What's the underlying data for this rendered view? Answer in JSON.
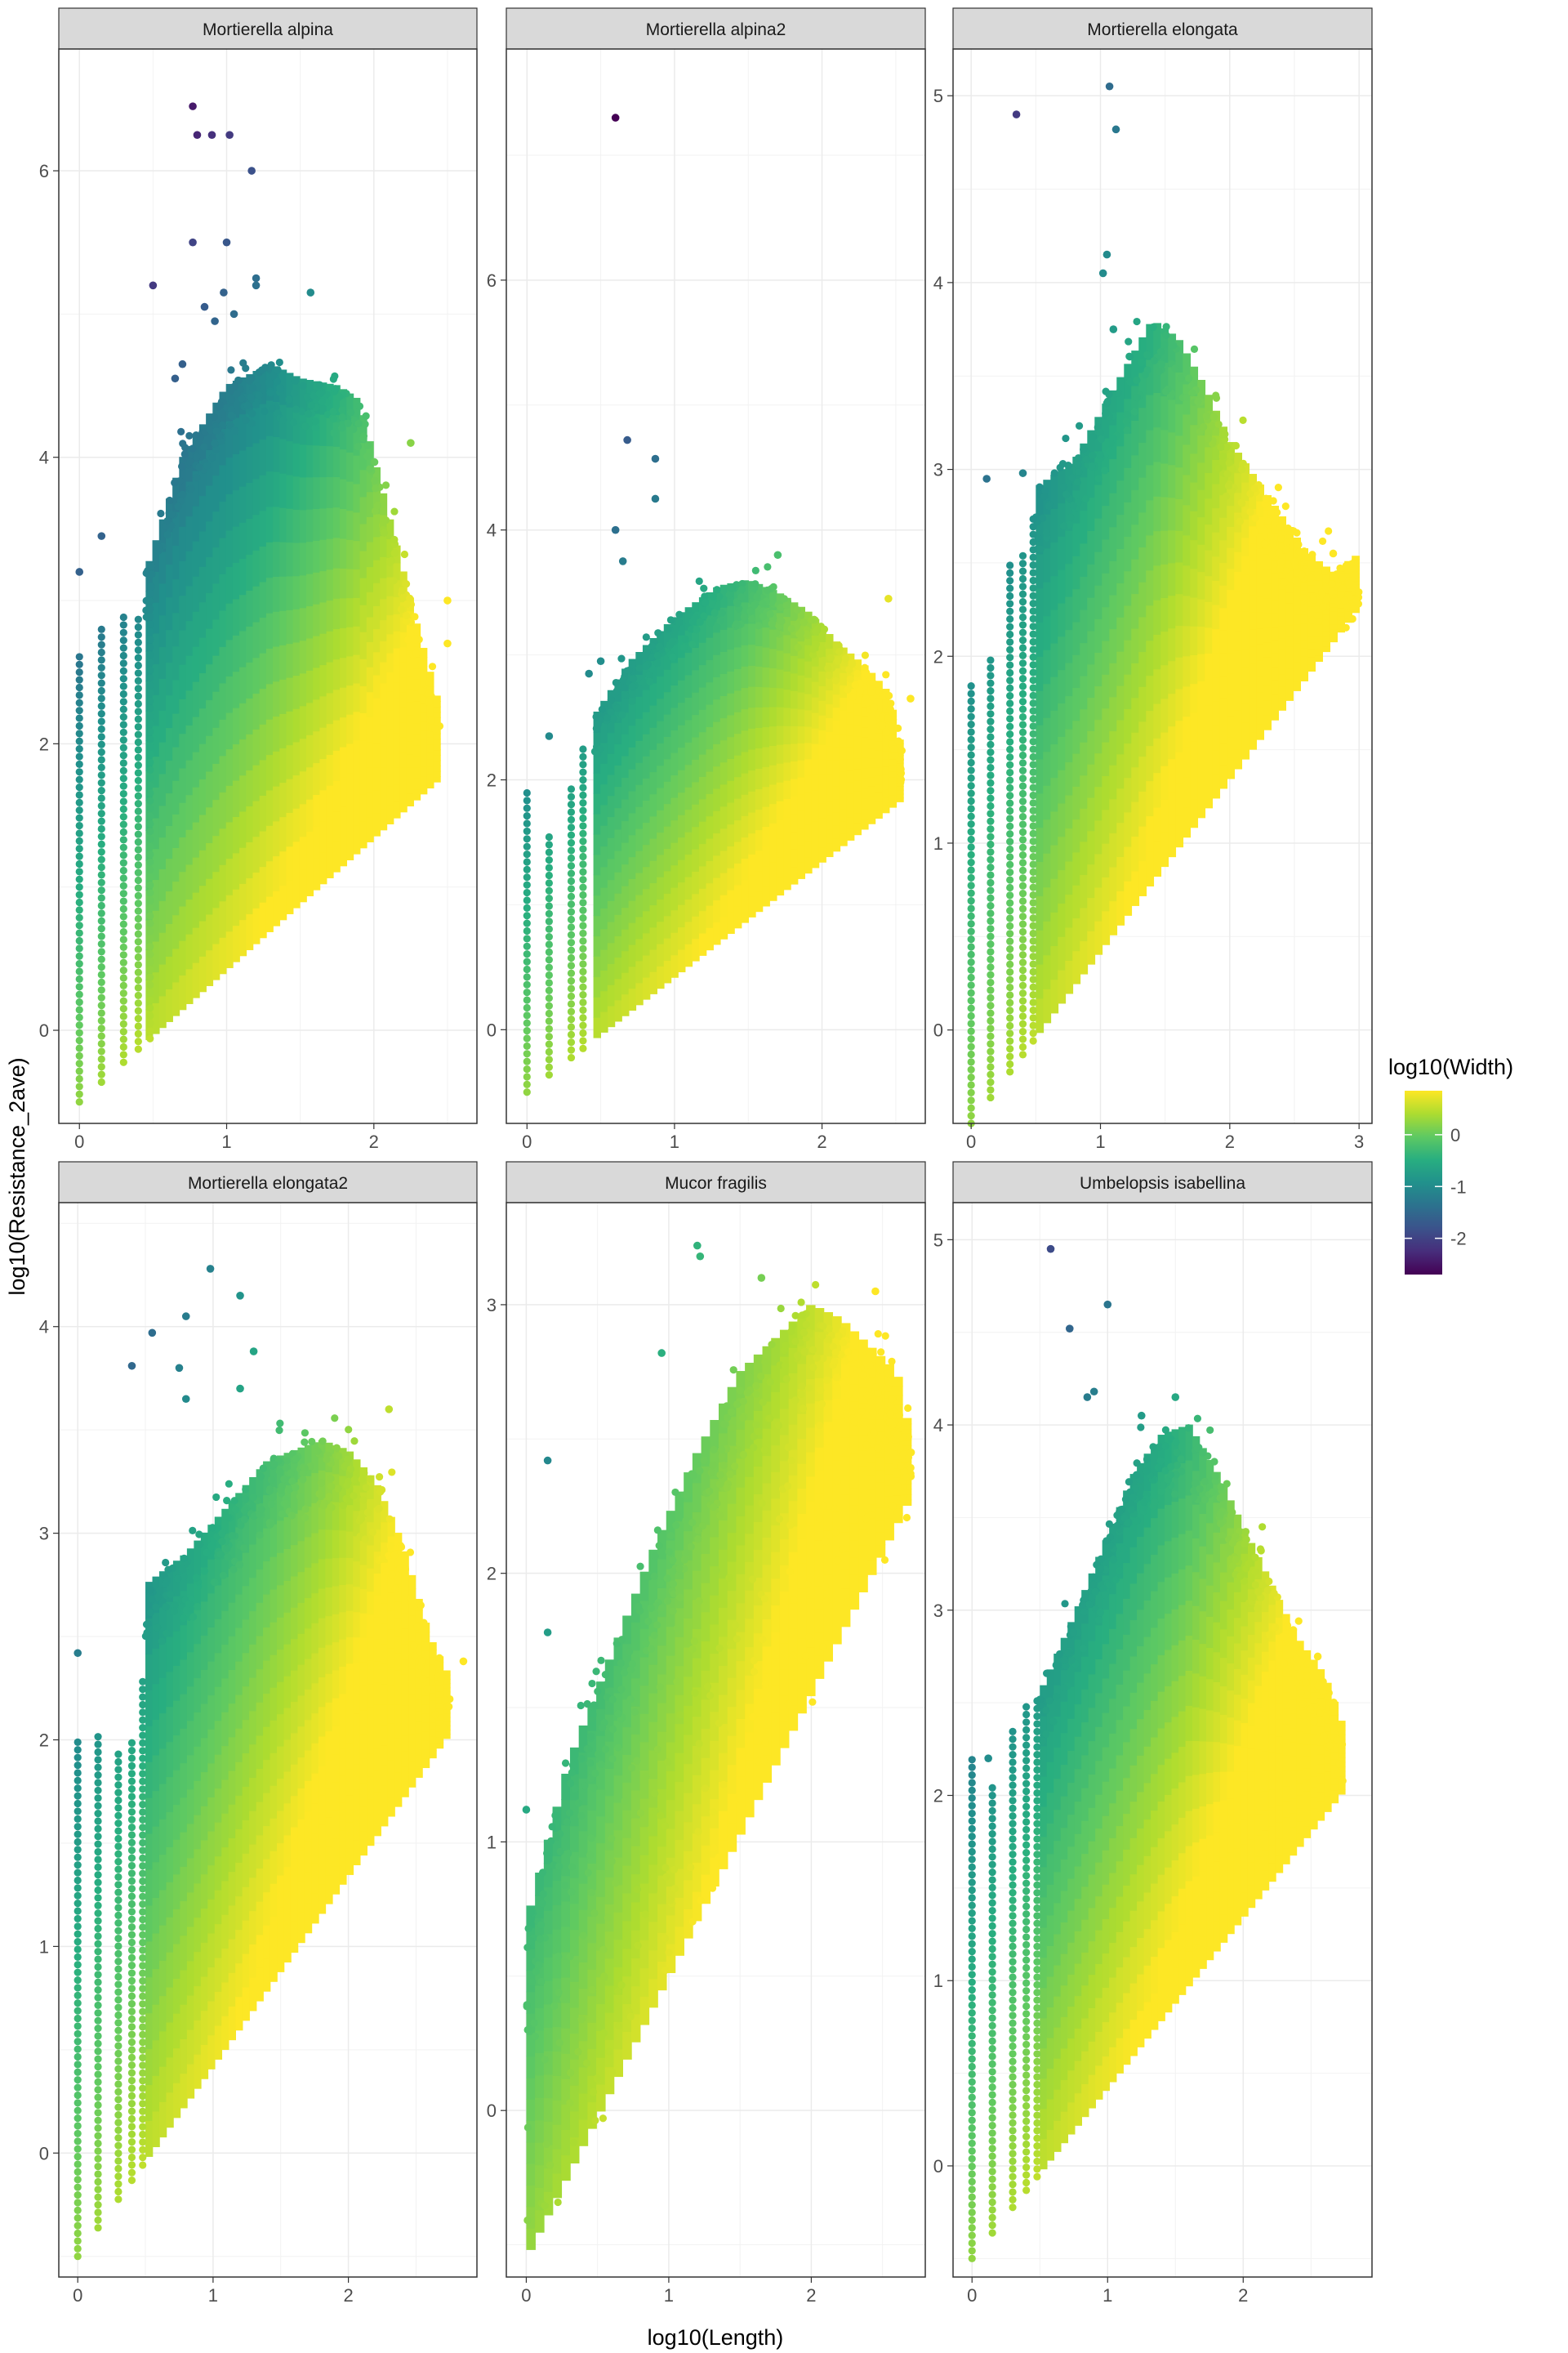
{
  "chart_data": {
    "type": "scatter",
    "xlabel": "log10(Length)",
    "ylabel": "log10(Resistance_2ave)",
    "legend": {
      "title": "log10(Width)",
      "position": "right",
      "colormap": "viridis",
      "breaks": [
        0,
        -1,
        -2
      ],
      "break_labels": [
        "0",
        "-1",
        "-2"
      ],
      "range": [
        -2.7,
        0.85
      ]
    },
    "grid": true,
    "panels": [
      {
        "title": "Mortierella alpina",
        "xlim": [
          -0.14,
          2.7
        ],
        "ylim": [
          -0.65,
          6.85
        ],
        "xticks": [
          0,
          1,
          2
        ],
        "yticks": [
          0,
          2,
          4,
          6
        ],
        "columns": [
          0,
          0.15,
          0.3,
          0.4,
          0.48
        ],
        "colmax": [
          2.65,
          2.85,
          2.9,
          2.9,
          3.1
        ],
        "envelope": {
          "x": [
            0.45,
            0.7,
            1.0,
            1.3,
            1.5,
            1.75,
            1.9,
            2.0,
            2.2,
            2.3,
            2.45
          ],
          "top": [
            3.2,
            4.0,
            4.5,
            4.65,
            4.55,
            4.5,
            4.4,
            4.0,
            3.2,
            2.8,
            2.25
          ]
        },
        "outliers": [
          [
            0.77,
            6.45
          ],
          [
            0.8,
            6.25
          ],
          [
            0.9,
            6.25
          ],
          [
            1.02,
            6.25
          ],
          [
            1.17,
            6.0
          ],
          [
            0.77,
            5.5
          ],
          [
            1.0,
            5.5
          ],
          [
            0.5,
            5.2
          ],
          [
            1.2,
            5.25
          ],
          [
            1.2,
            5.2
          ],
          [
            1.57,
            5.15
          ],
          [
            0.98,
            5.15
          ],
          [
            0.85,
            5.05
          ],
          [
            1.05,
            5.0
          ],
          [
            0.92,
            4.95
          ],
          [
            0.7,
            4.65
          ],
          [
            0.65,
            4.55
          ],
          [
            0,
            3.2
          ],
          [
            0.15,
            3.45
          ],
          [
            2.25,
            4.1
          ],
          [
            2.5,
            3.0
          ],
          [
            2.5,
            2.7
          ]
        ]
      },
      {
        "title": "Mortierella alpina2",
        "xlim": [
          -0.14,
          2.7
        ],
        "ylim": [
          -0.75,
          7.85
        ],
        "xticks": [
          0,
          1,
          2
        ],
        "yticks": [
          0,
          2,
          4,
          6
        ],
        "columns": [
          0,
          0.15,
          0.3,
          0.38
        ],
        "colmax": [
          1.9,
          1.55,
          1.95,
          2.3
        ],
        "envelope": {
          "x": [
            0.45,
            0.7,
            1.0,
            1.3,
            1.5,
            1.7,
            1.9,
            2.1,
            2.3,
            2.45,
            2.55
          ],
          "top": [
            2.5,
            2.95,
            3.3,
            3.55,
            3.6,
            3.5,
            3.35,
            3.1,
            2.9,
            2.7,
            2.2
          ]
        },
        "outliers": [
          [
            0.6,
            7.3
          ],
          [
            0.68,
            4.72
          ],
          [
            0.87,
            4.57
          ],
          [
            0.87,
            4.25
          ],
          [
            0.6,
            4.0
          ],
          [
            0.65,
            3.75
          ],
          [
            0.42,
            2.85
          ],
          [
            0.5,
            2.95
          ],
          [
            0.15,
            2.35
          ],
          [
            2.45,
            3.45
          ],
          [
            2.6,
            2.65
          ],
          [
            1.7,
            3.8
          ]
        ]
      },
      {
        "title": "Mortierella elongata",
        "xlim": [
          -0.14,
          3.1
        ],
        "ylim": [
          -0.5,
          5.25
        ],
        "xticks": [
          0,
          1,
          2,
          3
        ],
        "yticks": [
          0,
          1,
          2,
          3,
          4,
          5
        ],
        "columns": [
          0,
          0.15,
          0.3,
          0.4,
          0.48
        ],
        "colmax": [
          1.85,
          2.0,
          2.5,
          2.55,
          2.75
        ],
        "envelope": {
          "x": [
            0.5,
            0.8,
            1.0,
            1.2,
            1.4,
            1.6,
            1.8,
            2.0,
            2.2,
            2.4,
            2.6,
            2.8,
            3.0
          ],
          "top": [
            2.9,
            3.05,
            3.3,
            3.55,
            3.8,
            3.7,
            3.45,
            3.15,
            2.95,
            2.75,
            2.55,
            2.45,
            2.55
          ]
        },
        "outliers": [
          [
            1.07,
            5.05
          ],
          [
            0.35,
            4.9
          ],
          [
            1.12,
            4.82
          ],
          [
            1.05,
            4.15
          ],
          [
            1.02,
            4.05
          ],
          [
            0.12,
            2.95
          ],
          [
            1.1,
            3.75
          ],
          [
            0.4,
            2.98
          ],
          [
            2.8,
            2.55
          ]
        ]
      },
      {
        "title": "Mortierella elongata2",
        "xlim": [
          -0.14,
          2.95
        ],
        "ylim": [
          -0.6,
          4.6
        ],
        "xticks": [
          0,
          1,
          2
        ],
        "yticks": [
          0,
          1,
          2,
          3,
          4
        ],
        "columns": [
          0,
          0.15,
          0.3,
          0.4,
          0.48
        ],
        "colmax": [
          2.0,
          2.05,
          1.95,
          2.0,
          2.3
        ],
        "envelope": {
          "x": [
            0.5,
            0.8,
            1.0,
            1.2,
            1.4,
            1.6,
            1.8,
            2.0,
            2.2,
            2.4,
            2.6,
            2.75
          ],
          "top": [
            2.75,
            2.9,
            3.05,
            3.2,
            3.35,
            3.4,
            3.45,
            3.4,
            3.25,
            2.95,
            2.5,
            2.3
          ]
        },
        "outliers": [
          [
            0.98,
            4.28
          ],
          [
            1.2,
            4.15
          ],
          [
            0.8,
            4.05
          ],
          [
            0.55,
            3.97
          ],
          [
            0.4,
            3.81
          ],
          [
            0.75,
            3.8
          ],
          [
            1.3,
            3.88
          ],
          [
            1.2,
            3.7
          ],
          [
            0.8,
            3.65
          ],
          [
            0,
            2.42
          ],
          [
            2.85,
            2.38
          ],
          [
            2.3,
            3.6
          ]
        ]
      },
      {
        "title": "Mucor fragilis",
        "xlim": [
          -0.14,
          2.8
        ],
        "ylim": [
          -0.62,
          3.38
        ],
        "xticks": [
          0,
          1,
          2
        ],
        "yticks": [
          0,
          1,
          2,
          3
        ],
        "columns": [],
        "colmax": [],
        "envelope": {
          "x": [
            0.0,
            0.3,
            0.6,
            0.9,
            1.2,
            1.5,
            1.8,
            2.0,
            2.2,
            2.4,
            2.6,
            2.7
          ],
          "top": [
            0.7,
            1.3,
            1.7,
            2.1,
            2.45,
            2.75,
            2.9,
            3.0,
            2.95,
            2.85,
            2.75,
            2.5
          ]
        },
        "outliers": [
          [
            1.2,
            3.22
          ],
          [
            1.22,
            3.18
          ],
          [
            0.15,
            2.42
          ],
          [
            0.95,
            2.82
          ],
          [
            1.65,
            3.1
          ],
          [
            2.45,
            3.05
          ],
          [
            2.7,
            2.45
          ],
          [
            0,
            1.12
          ],
          [
            0.15,
            1.78
          ]
        ]
      },
      {
        "title": "Umbelopsis isabellina",
        "xlim": [
          -0.14,
          2.95
        ],
        "ylim": [
          -0.6,
          5.2
        ],
        "xticks": [
          0,
          1,
          2
        ],
        "yticks": [
          0,
          1,
          2,
          3,
          4,
          5
        ],
        "columns": [
          0,
          0.15,
          0.3,
          0.4,
          0.48
        ],
        "colmax": [
          2.2,
          2.05,
          2.35,
          2.5,
          2.55
        ],
        "envelope": {
          "x": [
            0.5,
            0.8,
            1.0,
            1.2,
            1.4,
            1.6,
            1.8,
            2.0,
            2.2,
            2.4,
            2.6,
            2.75
          ],
          "top": [
            2.55,
            3.05,
            3.4,
            3.75,
            3.95,
            4.0,
            3.75,
            3.45,
            3.15,
            2.85,
            2.65,
            2.35
          ]
        },
        "outliers": [
          [
            0.58,
            4.95
          ],
          [
            1.0,
            4.65
          ],
          [
            0.72,
            4.52
          ],
          [
            0.9,
            4.18
          ],
          [
            0.85,
            4.15
          ],
          [
            1.25,
            4.05
          ],
          [
            1.5,
            4.15
          ],
          [
            0.12,
            2.2
          ],
          [
            2.7,
            2.3
          ],
          [
            2.55,
            2.75
          ]
        ]
      }
    ]
  }
}
